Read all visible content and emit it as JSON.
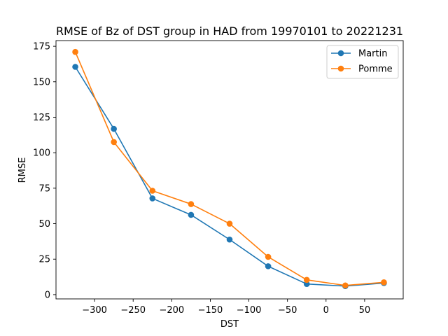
{
  "chart_data": {
    "type": "line",
    "title": "RMSE of Bz of DST group in HAD from 19970101 to 20221231",
    "xlabel": "DST",
    "ylabel": "RMSE",
    "xlim": [
      -350,
      100
    ],
    "ylim": [
      -3,
      179
    ],
    "xticks": [
      -300,
      -250,
      -200,
      -150,
      -100,
      -50,
      0,
      50
    ],
    "yticks": [
      0,
      25,
      50,
      75,
      100,
      125,
      150,
      175
    ],
    "grid": false,
    "legend_position": "top-right",
    "x": [
      -325,
      -275,
      -225,
      -175,
      -125,
      -75,
      -25,
      25,
      75
    ],
    "series": [
      {
        "name": "Martin",
        "color": "#1f77b4",
        "marker": "circle",
        "values": [
          160.5,
          116.8,
          67.8,
          56.2,
          38.8,
          20.0,
          7.5,
          6.0,
          8.2
        ]
      },
      {
        "name": "Pomme",
        "color": "#ff7f0e",
        "marker": "circle",
        "values": [
          171.0,
          107.5,
          73.2,
          63.8,
          50.0,
          26.6,
          10.4,
          6.5,
          8.7
        ]
      }
    ]
  }
}
